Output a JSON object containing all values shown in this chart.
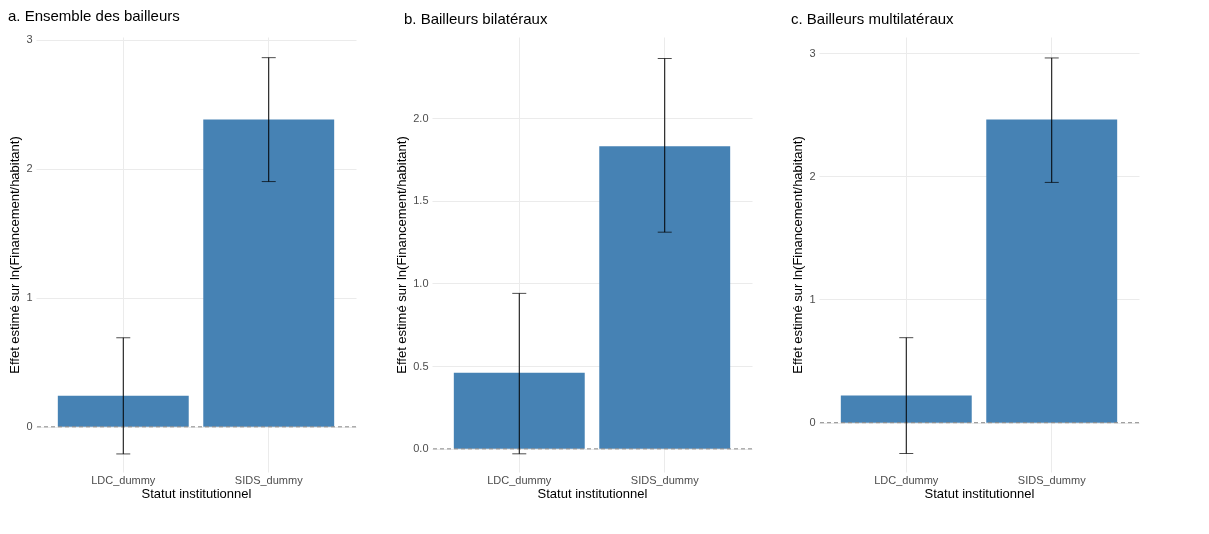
{
  "chart_data": [
    {
      "type": "bar",
      "title": "a. Ensemble des bailleurs",
      "xlabel": "Statut institutionnel",
      "ylabel": "Effet estimé sur ln(Financement/habitant)",
      "categories": [
        "LDC_dummy",
        "SIDS_dummy"
      ],
      "values": [
        0.24,
        2.38
      ],
      "color": "#4682b4",
      "errors": [
        [
          -0.21,
          0.69
        ],
        [
          1.9,
          2.86
        ]
      ],
      "ylim": [
        -0.35,
        3.02
      ],
      "yticks": [
        0,
        1,
        2,
        3
      ],
      "grid": true,
      "ref_lines": [
        {
          "axis": "y",
          "value": 0,
          "color": "#888888",
          "line_style": "dashed"
        }
      ]
    },
    {
      "type": "bar",
      "title": "b. Bailleurs bilatéraux",
      "xlabel": "Statut institutionnel",
      "ylabel": "Effet estimé sur ln(Financement/habitant)",
      "categories": [
        "LDC_dummy",
        "SIDS_dummy"
      ],
      "values": [
        0.46,
        1.83
      ],
      "color": "#4682b4",
      "errors": [
        [
          -0.03,
          0.94
        ],
        [
          1.31,
          2.36
        ]
      ],
      "ylim": [
        -0.14,
        2.49
      ],
      "yticks": [
        {
          "value": 0,
          "label": "0.0"
        },
        0.5,
        {
          "value": 1,
          "label": "1.0"
        },
        1.5,
        {
          "value": 2,
          "label": "2.0"
        }
      ],
      "grid": true,
      "ref_lines": [
        {
          "axis": "y",
          "value": 0,
          "color": "#888888",
          "line_style": "dashed"
        }
      ]
    },
    {
      "type": "bar",
      "title": "c. Bailleurs multilatéraux",
      "xlabel": "Statut institutionnel",
      "ylabel": "Effet estimé sur ln(Financement/habitant)",
      "categories": [
        "LDC_dummy",
        "SIDS_dummy"
      ],
      "values": [
        0.22,
        2.46
      ],
      "color": "#4682b4",
      "errors": [
        [
          -0.25,
          0.69
        ],
        [
          1.95,
          2.96
        ]
      ],
      "ylim": [
        -0.4,
        3.13
      ],
      "yticks": [
        0,
        1,
        2,
        3
      ],
      "grid": true,
      "ref_lines": [
        {
          "axis": "y",
          "value": 0,
          "color": "#888888",
          "line_style": "dashed"
        }
      ]
    }
  ]
}
